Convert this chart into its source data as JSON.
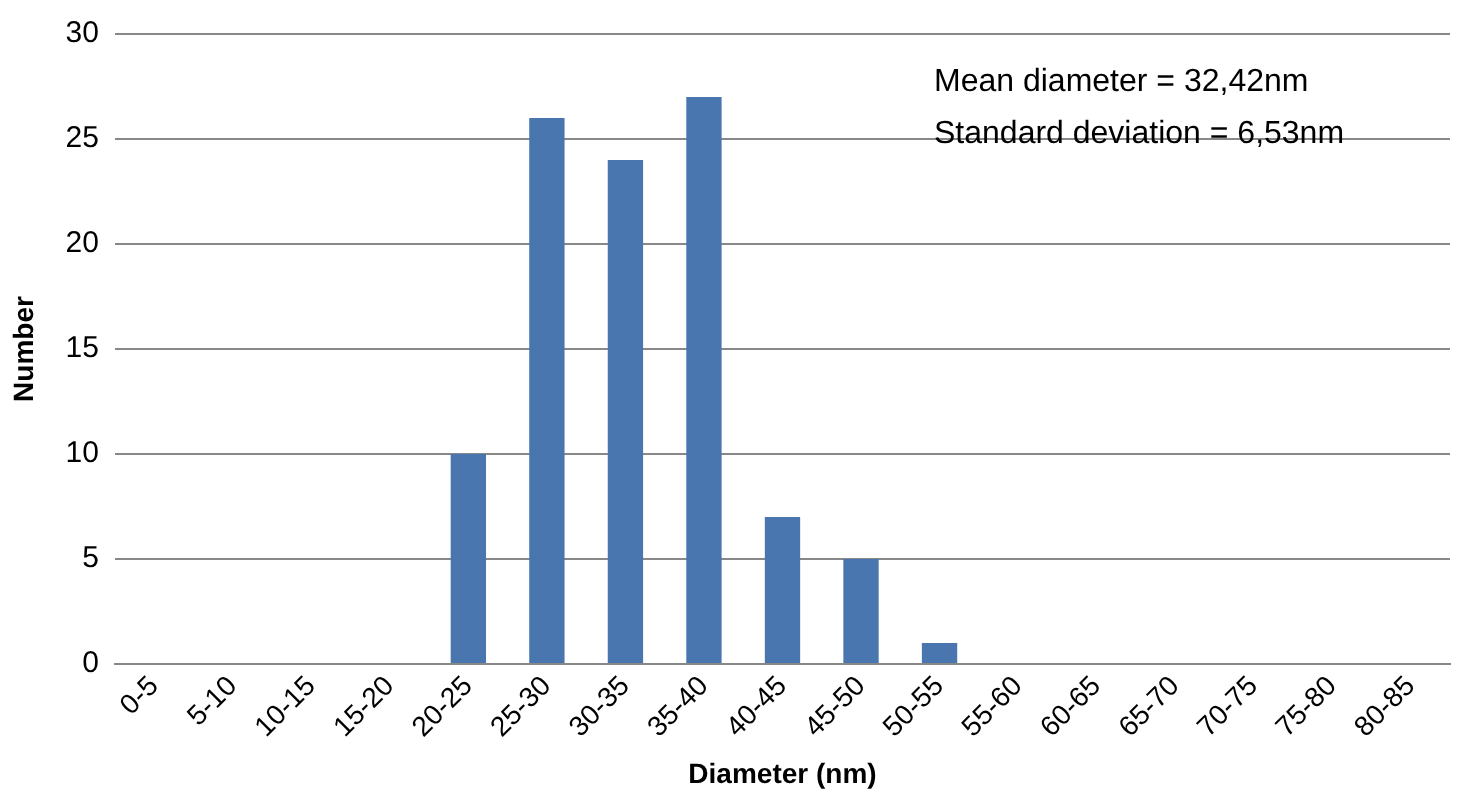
{
  "chart_data": {
    "type": "bar",
    "xlabel": "Diameter (nm)",
    "ylabel": "Number",
    "categories": [
      "0-5",
      "5-10",
      "10-15",
      "15-20",
      "20-25",
      "25-30",
      "30-35",
      "35-40",
      "40-45",
      "45-50",
      "50-55",
      "55-60",
      "60-65",
      "65-70",
      "70-75",
      "75-80",
      "80-85"
    ],
    "values": [
      0,
      0,
      0,
      0,
      10,
      26,
      24,
      27,
      7,
      5,
      1,
      0,
      0,
      0,
      0,
      0,
      0
    ],
    "color": "#4a76b0",
    "ylim": [
      0,
      30
    ],
    "yticks": [
      0,
      5,
      10,
      15,
      20,
      25,
      30
    ],
    "grid": "y",
    "annotations": [
      "Mean diameter = 32,42nm",
      "Standard deviation = 6,53nm"
    ]
  }
}
